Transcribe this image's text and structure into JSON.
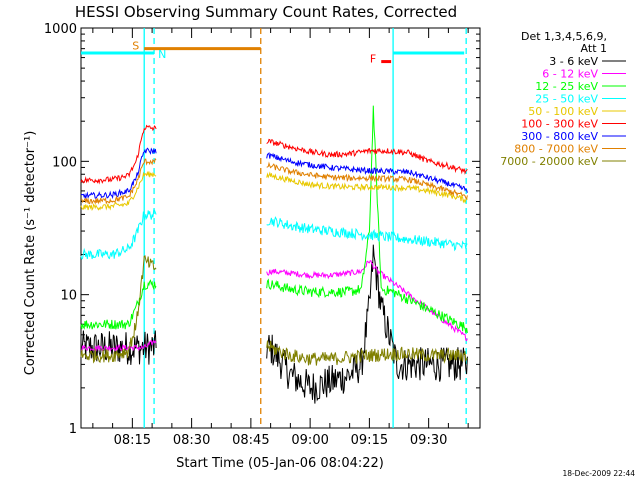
{
  "chart_data": {
    "type": "line",
    "title": "HESSI Observing Summary Count Rates, Corrected",
    "xlabel": "Start Time (05-Jan-06 08:04:22)",
    "ylabel": "Corrected Count Rate (s⁻¹ detector⁻¹)",
    "yscale": "log",
    "ylim": [
      1,
      1000
    ],
    "xlim_minutes": [
      482,
      583
    ],
    "x_tick_labels": [
      "08:15",
      "08:30",
      "08:45",
      "09:00",
      "09:15",
      "09:30"
    ],
    "x_tick_minutes": [
      495,
      510,
      525,
      540,
      555,
      570
    ],
    "y_tick_labels": [
      "1",
      "10",
      "100",
      "1000"
    ],
    "y_tick_values": [
      1,
      10,
      100,
      1000
    ],
    "legend_header": [
      "Det 1,3,4,5,6,9,",
      "Att 1"
    ],
    "legend_position": "right",
    "timestamp": "18-Dec-2009 22:44",
    "series": [
      {
        "name": "3 - 6 keV",
        "color": "#000000",
        "x": [
          482,
          498,
          530,
          535,
          540,
          545,
          550,
          553,
          555,
          556,
          558,
          562,
          566,
          570,
          574,
          579,
          583
        ],
        "y": [
          4,
          4,
          4,
          2.5,
          2,
          2.2,
          2.5,
          3,
          8,
          20,
          8,
          3,
          3,
          3,
          3,
          3,
          3
        ]
      },
      {
        "name": "6 - 12 keV",
        "color": "#ff00ff",
        "x": [
          482,
          490,
          498,
          530,
          535,
          540,
          545,
          550,
          553,
          555,
          557,
          583
        ],
        "y": [
          4,
          4,
          4,
          15,
          14.5,
          14,
          14,
          14.5,
          15,
          18,
          15,
          4
        ]
      },
      {
        "name": "12 - 25 keV",
        "color": "#00ff00",
        "x": [
          482,
          490,
          494,
          496,
          498,
          530,
          535,
          540,
          545,
          550,
          553,
          555,
          556,
          558,
          561,
          583
        ],
        "y": [
          6,
          6,
          6,
          8,
          12,
          12,
          11,
          10.5,
          10.5,
          10.5,
          11,
          30,
          250,
          11,
          10.5,
          5
        ]
      },
      {
        "name": "25 - 50 keV",
        "color": "#00ffff",
        "x": [
          482,
          490,
          494,
          496,
          498,
          530,
          535,
          540,
          545,
          550,
          555,
          560,
          565,
          570,
          575,
          579,
          583
        ],
        "y": [
          20,
          20,
          22,
          28,
          40,
          36,
          33,
          31,
          30,
          29,
          28,
          27,
          26,
          25,
          24,
          23,
          22
        ]
      },
      {
        "name": "50 - 100 keV",
        "color": "#e8c800",
        "x": [
          482,
          490,
          494,
          496,
          498,
          530,
          535,
          540,
          545,
          550,
          555,
          560,
          565,
          570,
          575,
          579,
          583
        ],
        "y": [
          45,
          46,
          48,
          60,
          80,
          78,
          72,
          67,
          65,
          64,
          64,
          64,
          63,
          60,
          56,
          52,
          48
        ]
      },
      {
        "name": "100 - 300 keV",
        "color": "#ff0000",
        "x": [
          482,
          490,
          494,
          496,
          498,
          530,
          535,
          540,
          545,
          550,
          555,
          560,
          565,
          570,
          575,
          579,
          583
        ],
        "y": [
          72,
          73,
          78,
          100,
          180,
          140,
          128,
          118,
          112,
          114,
          120,
          120,
          116,
          100,
          92,
          85,
          75
        ]
      },
      {
        "name": "300 - 800 keV",
        "color": "#0000ff",
        "x": [
          482,
          490,
          494,
          496,
          498,
          530,
          535,
          540,
          545,
          550,
          555,
          560,
          565,
          570,
          575,
          579,
          583
        ],
        "y": [
          55,
          56,
          60,
          75,
          120,
          110,
          100,
          94,
          90,
          87,
          85,
          84,
          83,
          75,
          68,
          62,
          57
        ]
      },
      {
        "name": "800 - 7000 keV",
        "color": "#e08000",
        "x": [
          482,
          490,
          494,
          496,
          498,
          530,
          535,
          540,
          545,
          550,
          555,
          560,
          565,
          570,
          575,
          579,
          583
        ],
        "y": [
          50,
          51,
          54,
          68,
          100,
          92,
          84,
          79,
          76,
          75,
          75,
          74,
          73,
          66,
          60,
          55,
          51
        ]
      },
      {
        "name": "7000 - 20000 keV",
        "color": "#808000",
        "x": [
          482,
          490,
          494,
          496,
          498,
          530,
          535,
          540,
          545,
          550,
          555,
          560,
          565,
          570,
          575,
          579,
          583
        ],
        "y": [
          3.5,
          3.5,
          3.8,
          6,
          18,
          4,
          3.5,
          3.3,
          3.3,
          3.4,
          3.5,
          3.6,
          3.6,
          3.5,
          3.5,
          3.5,
          3.5
        ]
      }
    ],
    "state_bars": [
      {
        "label": "S",
        "color": "#e08000",
        "x_start": 498,
        "x_end": 527.5,
        "y": 700
      },
      {
        "label": "N",
        "color": "#00ffff",
        "x_start": 482,
        "x_end": 500.5,
        "y": 650
      },
      {
        "label": "",
        "color": "#00ffff",
        "x_start": 561,
        "x_end": 579,
        "y": 650
      },
      {
        "label": "F",
        "color": "#ff0000",
        "x_start": 558,
        "x_end": 560.5,
        "y": 560
      }
    ],
    "vertical_markers": [
      {
        "x": 498,
        "color": "#00ffff",
        "style": "solid"
      },
      {
        "x": 500.5,
        "color": "#00ffff",
        "style": "dashed"
      },
      {
        "x": 527.5,
        "color": "#e08000",
        "style": "dashed"
      },
      {
        "x": 561,
        "color": "#00ffff",
        "style": "solid"
      },
      {
        "x": 579.5,
        "color": "#00ffff",
        "style": "dashed"
      }
    ],
    "gaps": [
      [
        501,
        529
      ],
      [
        580,
        583
      ]
    ]
  }
}
